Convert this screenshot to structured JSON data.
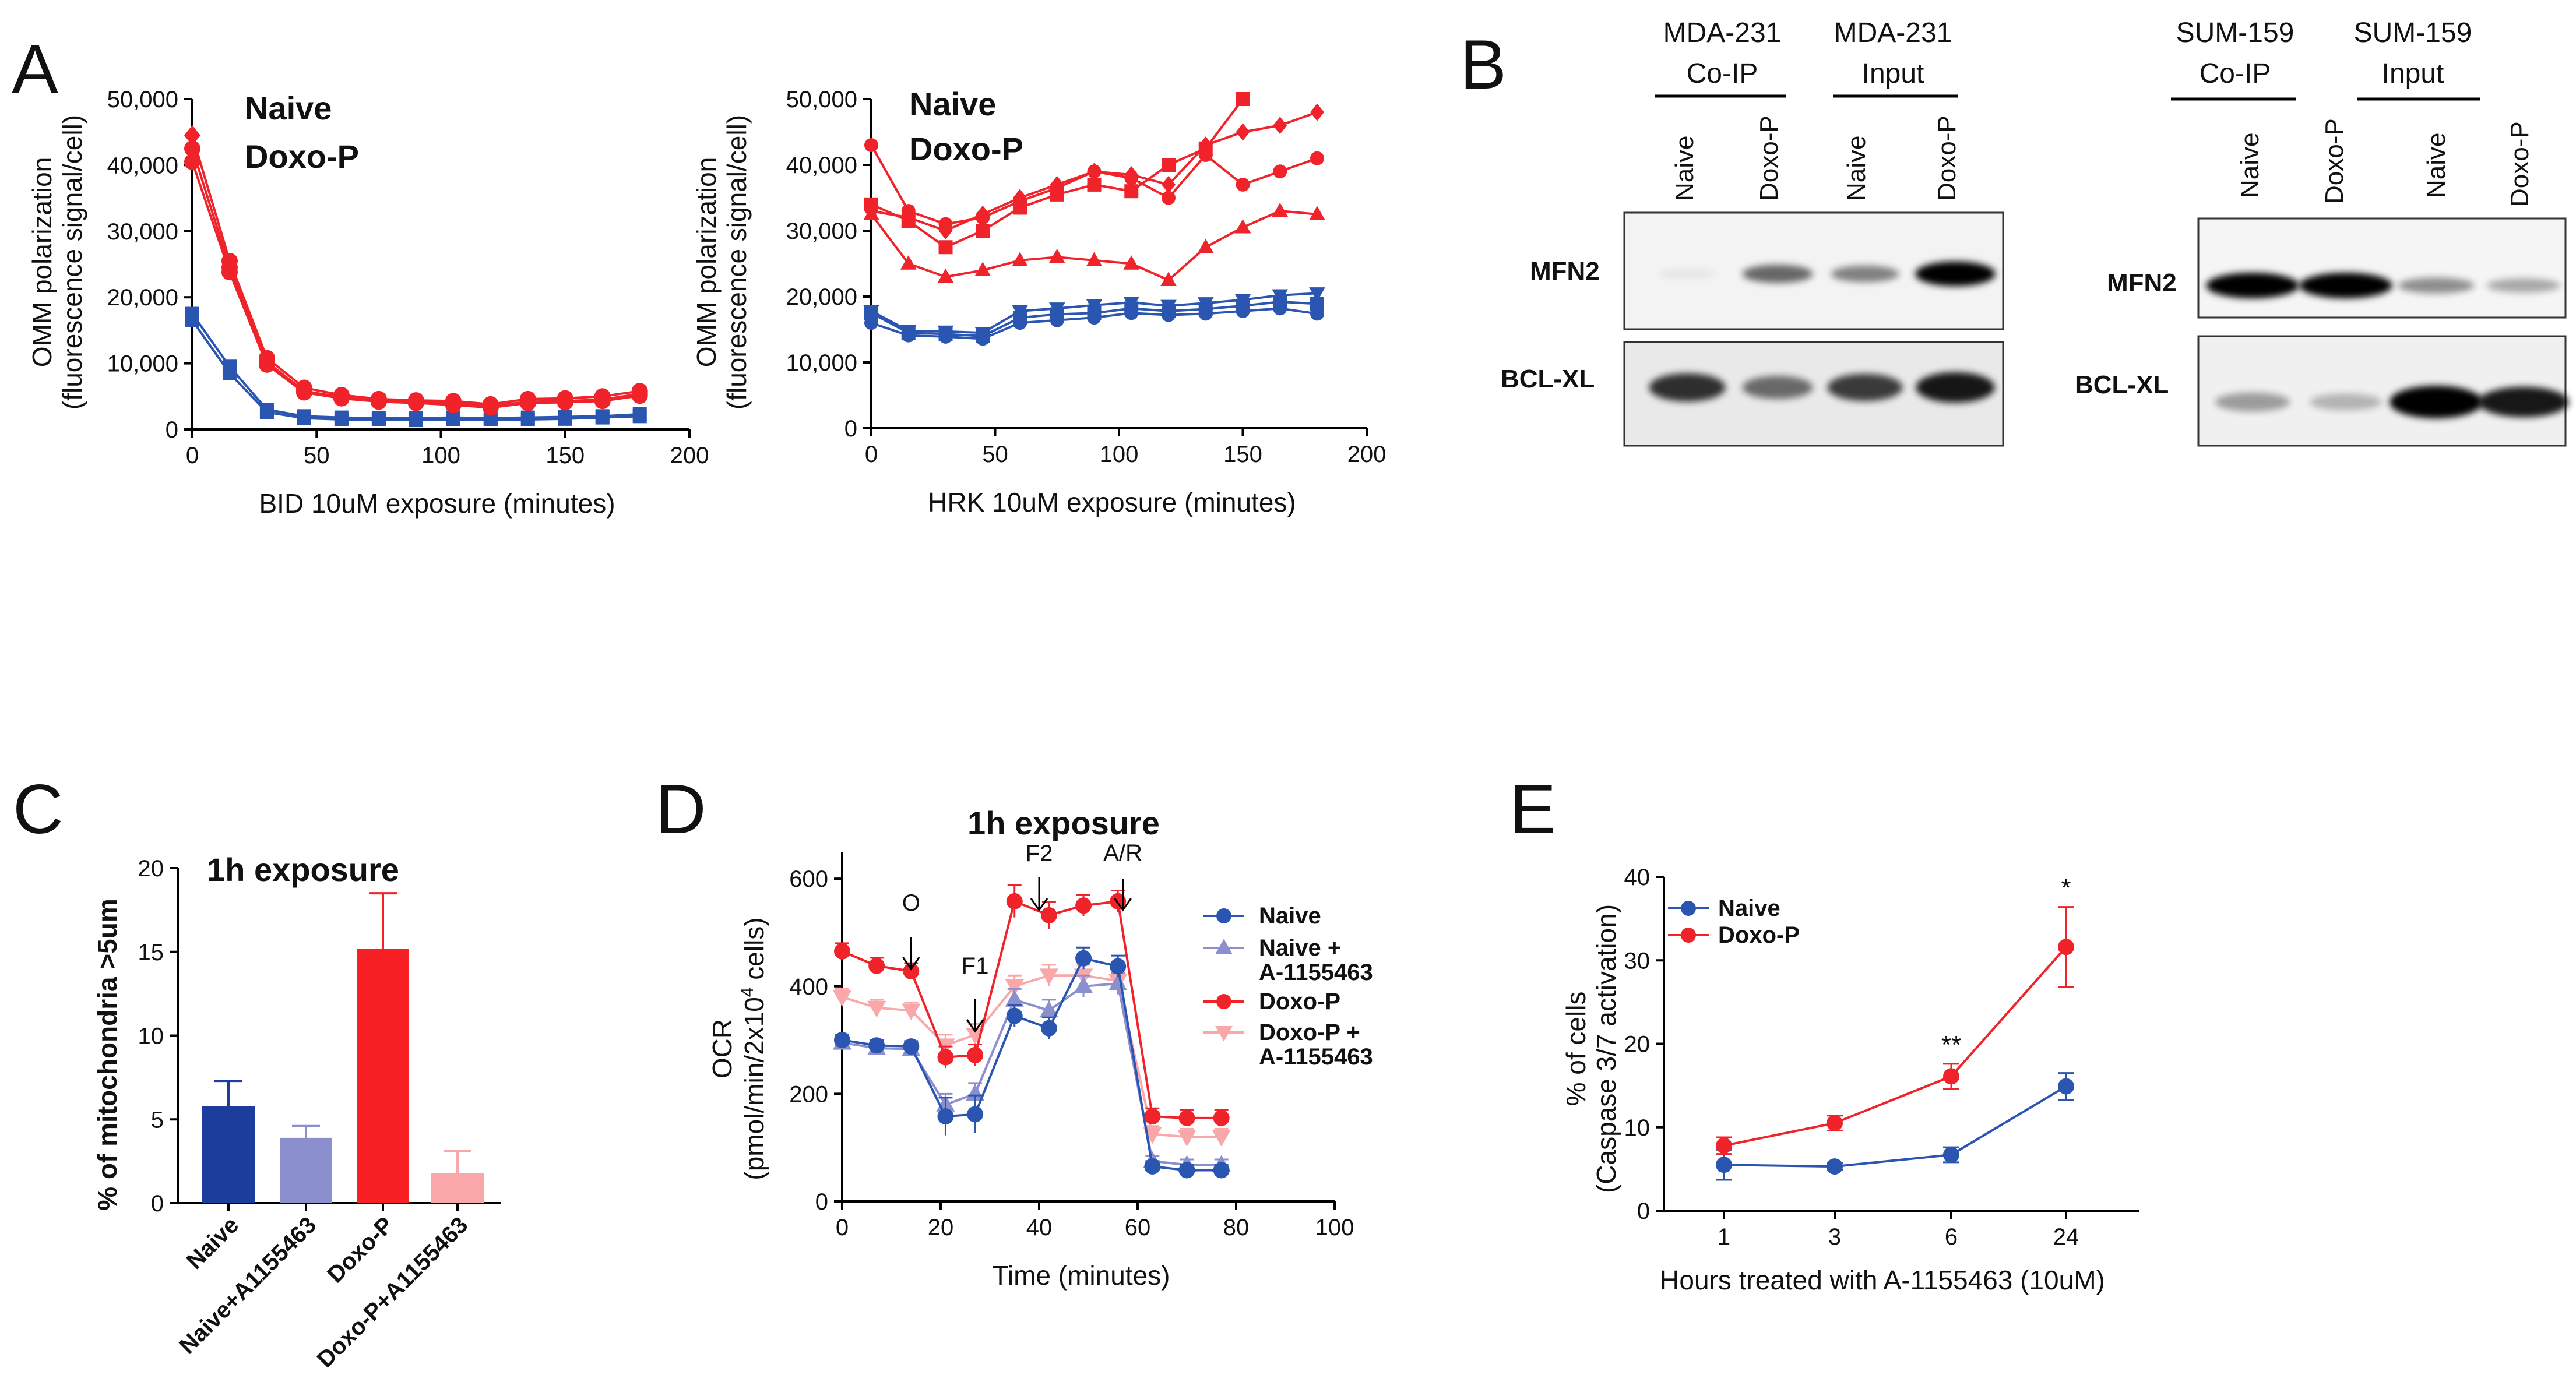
{
  "panels": {
    "A": "A",
    "B": "B",
    "C": "C",
    "D": "D",
    "E": "E"
  },
  "colors": {
    "naive": "#2A55B0",
    "naive_legend": "#2E3192",
    "doxo": "#F0232B",
    "naive_light": "#8C8FCE",
    "doxo_light": "#F9A7A9",
    "bar_naive": "#1D3D9C",
    "bar_naive_a": "#8C8FCE",
    "bar_doxo": "#F72025",
    "bar_doxo_a": "#F9A7A9"
  },
  "chart_data": [
    {
      "id": "A1",
      "type": "line",
      "xlabel": "BID 10uM exposure (minutes)",
      "ylabel_line1": "OMM polarization",
      "ylabel_line2": "(fluorescence signal/cell)",
      "xlim": [
        0,
        200
      ],
      "ylim": [
        0,
        50000
      ],
      "xticks": [
        0,
        50,
        100,
        150,
        200
      ],
      "yticks": [
        0,
        10000,
        20000,
        30000,
        40000,
        50000
      ],
      "ytick_labels": [
        "0",
        "10,000",
        "20,000",
        "30,000",
        "40,000",
        "50,000"
      ],
      "legend": [
        "Naive",
        "Doxo-P"
      ],
      "x": [
        0,
        15,
        30,
        45,
        60,
        75,
        90,
        105,
        120,
        135,
        150,
        165,
        180
      ],
      "series": [
        {
          "name": "Naive",
          "values": [
            17500,
            9500,
            3000,
            2000,
            1800,
            1700,
            1700,
            1800,
            1700,
            1800,
            1900,
            2000,
            2300
          ]
        },
        {
          "name": "Naive",
          "values": [
            16500,
            8500,
            2600,
            1700,
            1500,
            1500,
            1400,
            1500,
            1500,
            1500,
            1600,
            1800,
            2000
          ]
        },
        {
          "name": "Doxo-P",
          "values": [
            44500,
            25500,
            10800,
            6300,
            5200,
            4600,
            4400,
            4300,
            3800,
            4600,
            4700,
            5000,
            5800
          ]
        },
        {
          "name": "Doxo-P",
          "values": [
            42500,
            24500,
            10200,
            5800,
            4900,
            4400,
            4200,
            4000,
            3500,
            4200,
            4300,
            4500,
            5400
          ]
        },
        {
          "name": "Doxo-P",
          "values": [
            40500,
            23800,
            9800,
            5600,
            4700,
            4200,
            4000,
            3700,
            3300,
            4000,
            4100,
            4300,
            5100
          ]
        }
      ]
    },
    {
      "id": "A2",
      "type": "line",
      "xlabel": "HRK 10uM exposure (minutes)",
      "ylabel_line1": "OMM polarization",
      "ylabel_line2": "(fluorescence signal/cell)",
      "xlim": [
        0,
        200
      ],
      "ylim": [
        0,
        50000
      ],
      "xticks": [
        0,
        50,
        100,
        150,
        200
      ],
      "yticks": [
        0,
        10000,
        20000,
        30000,
        40000,
        50000
      ],
      "ytick_labels": [
        "0",
        "10,000",
        "20,000",
        "30,000",
        "40,000",
        "50,000"
      ],
      "legend": [
        "Naive",
        "Doxo-P"
      ],
      "x": [
        0,
        15,
        30,
        45,
        60,
        75,
        90,
        105,
        120,
        135,
        150,
        165,
        180
      ],
      "series": [
        {
          "name": "Naive",
          "marker": "triangle-down",
          "values": [
            17800,
            14800,
            14700,
            14500,
            17800,
            18200,
            18700,
            19100,
            18600,
            19000,
            19500,
            20200,
            20500
          ]
        },
        {
          "name": "Naive",
          "marker": "square",
          "values": [
            17500,
            14500,
            14300,
            14000,
            16800,
            17300,
            17500,
            18200,
            17800,
            18100,
            18600,
            19200,
            18900
          ]
        },
        {
          "name": "Naive",
          "marker": "circle",
          "values": [
            16000,
            14100,
            13900,
            13600,
            16000,
            16400,
            16800,
            17500,
            17200,
            17400,
            17800,
            18200,
            17400
          ]
        },
        {
          "name": "Doxo-P",
          "marker": "circle",
          "values": [
            43000,
            33000,
            31000,
            32000,
            34500,
            36500,
            39000,
            38000,
            35000,
            41500,
            37000,
            39000,
            41000
          ]
        },
        {
          "name": "Doxo-P",
          "marker": "diamond",
          "values": [
            33000,
            32000,
            30000,
            32500,
            35000,
            37000,
            39000,
            38500,
            37000,
            43000,
            45000,
            46000,
            48000
          ]
        },
        {
          "name": "Doxo-P",
          "marker": "square",
          "values": [
            34000,
            31500,
            27500,
            30000,
            33500,
            35500,
            37000,
            36000,
            40000,
            42500,
            50000,
            null,
            null
          ]
        },
        {
          "name": "Doxo-P",
          "marker": "triangle-up",
          "values": [
            32500,
            25000,
            23000,
            24000,
            25500,
            26000,
            25500,
            25000,
            22500,
            27500,
            30500,
            33000,
            32500
          ]
        }
      ]
    },
    {
      "id": "C",
      "type": "bar",
      "title": "1h exposure",
      "ylabel": "% of mitochondria >5um",
      "ylim": [
        0,
        20
      ],
      "yticks": [
        0,
        5,
        10,
        15,
        20
      ],
      "categories": [
        "Naive",
        "Naive+A1155463",
        "Doxo-P",
        "Doxo-P+A1155463"
      ],
      "values": [
        5.8,
        3.9,
        15.2,
        1.8
      ],
      "errors": [
        1.5,
        0.7,
        3.3,
        1.3
      ]
    },
    {
      "id": "D",
      "type": "line",
      "title": "1h exposure",
      "xlabel": "Time (minutes)",
      "ylabel_pre": "(pmol/min/2x10",
      "ylabel_sup": "4",
      "ylabel_post": " cells)",
      "ylabel_top": "OCR",
      "xlim": [
        0,
        100
      ],
      "ylim": [
        0,
        650
      ],
      "xticks": [
        0,
        20,
        40,
        60,
        80,
        100
      ],
      "yticks": [
        0,
        200,
        400,
        600
      ],
      "x": [
        0,
        7,
        14,
        21,
        27,
        35,
        42,
        49,
        56,
        63,
        70,
        77
      ],
      "annotations": [
        {
          "label": "O",
          "x": 14
        },
        {
          "label": "F1",
          "x": 27
        },
        {
          "label": "F2",
          "x": 40
        },
        {
          "label": "A/R",
          "x": 57
        }
      ],
      "legend": [
        "Naive",
        "Naive + A-1155463",
        "Doxo-P",
        "Doxo-P + A-1155463"
      ],
      "legend_lines": [
        [
          "Naive"
        ],
        [
          "Naive +",
          "A-1155463"
        ],
        [
          "Doxo-P"
        ],
        [
          "Doxo-P +",
          "A-1155463"
        ]
      ],
      "series": [
        {
          "name": "Naive",
          "values": [
            300,
            290,
            288,
            158,
            162,
            345,
            322,
            452,
            437,
            65,
            58,
            58
          ],
          "errors": [
            10,
            10,
            10,
            35,
            35,
            20,
            20,
            20,
            20,
            10,
            10,
            10
          ]
        },
        {
          "name": "Naive + A-1155463",
          "values": [
            295,
            285,
            283,
            180,
            200,
            375,
            355,
            400,
            405,
            75,
            68,
            68
          ],
          "errors": [
            10,
            10,
            10,
            20,
            20,
            20,
            20,
            20,
            20,
            10,
            10,
            10
          ]
        },
        {
          "name": "Doxo-P",
          "values": [
            465,
            438,
            428,
            268,
            272,
            558,
            532,
            550,
            558,
            158,
            155,
            155
          ],
          "errors": [
            15,
            15,
            15,
            20,
            20,
            30,
            25,
            20,
            20,
            15,
            15,
            15
          ]
        },
        {
          "name": "Doxo-P + A-1155463",
          "values": [
            380,
            360,
            355,
            290,
            310,
            400,
            420,
            420,
            410,
            125,
            120,
            120
          ],
          "errors": [
            15,
            15,
            15,
            20,
            20,
            20,
            20,
            20,
            20,
            15,
            15,
            15
          ]
        }
      ]
    },
    {
      "id": "E",
      "type": "line",
      "ylabel_line1": "% of cells",
      "ylabel_line2": "(Caspase 3/7 activation)",
      "xlabel": "Hours treated with A-1155463 (10uM)",
      "ylim": [
        0,
        40
      ],
      "yticks": [
        0,
        10,
        20,
        30,
        40
      ],
      "categories": [
        "1",
        "3",
        "6",
        "24"
      ],
      "legend": [
        "Naive",
        "Doxo-P"
      ],
      "series": [
        {
          "name": "Naive",
          "values": [
            5.5,
            5.3,
            6.7,
            14.9
          ],
          "errors": [
            1.8,
            0.4,
            0.9,
            1.6
          ]
        },
        {
          "name": "Doxo-P",
          "values": [
            7.8,
            10.5,
            16.1,
            31.6
          ],
          "errors": [
            1.0,
            0.9,
            1.5,
            4.8
          ]
        }
      ],
      "significance": [
        {
          "category": "6",
          "label": "**"
        },
        {
          "category": "24",
          "label": "*"
        }
      ]
    }
  ],
  "blots": {
    "mda": {
      "group1_line1": "MDA-231",
      "group1_line2": "Co-IP",
      "group2_line1": "MDA-231",
      "group2_line2": "Input",
      "lanes": [
        "Naive",
        "Doxo-P",
        "Naive",
        "Doxo-P"
      ],
      "proteins": [
        "MFN2",
        "BCL-XL"
      ],
      "mfn2_intensity": [
        0.05,
        0.55,
        0.45,
        0.95
      ],
      "bclxl_intensity": [
        0.8,
        0.55,
        0.75,
        0.9
      ]
    },
    "sum": {
      "group1_line1": "SUM-159",
      "group1_line2": "Co-IP",
      "group2_line1": "SUM-159",
      "group2_line2": "Input",
      "lanes": [
        "Naive",
        "Doxo-P",
        "Naive",
        "Doxo-P"
      ],
      "proteins": [
        "MFN2",
        "BCL-XL"
      ],
      "mfn2_intensity": [
        1.0,
        1.0,
        0.4,
        0.3
      ],
      "bclxl_intensity": [
        0.35,
        0.25,
        1.0,
        0.9
      ]
    }
  }
}
